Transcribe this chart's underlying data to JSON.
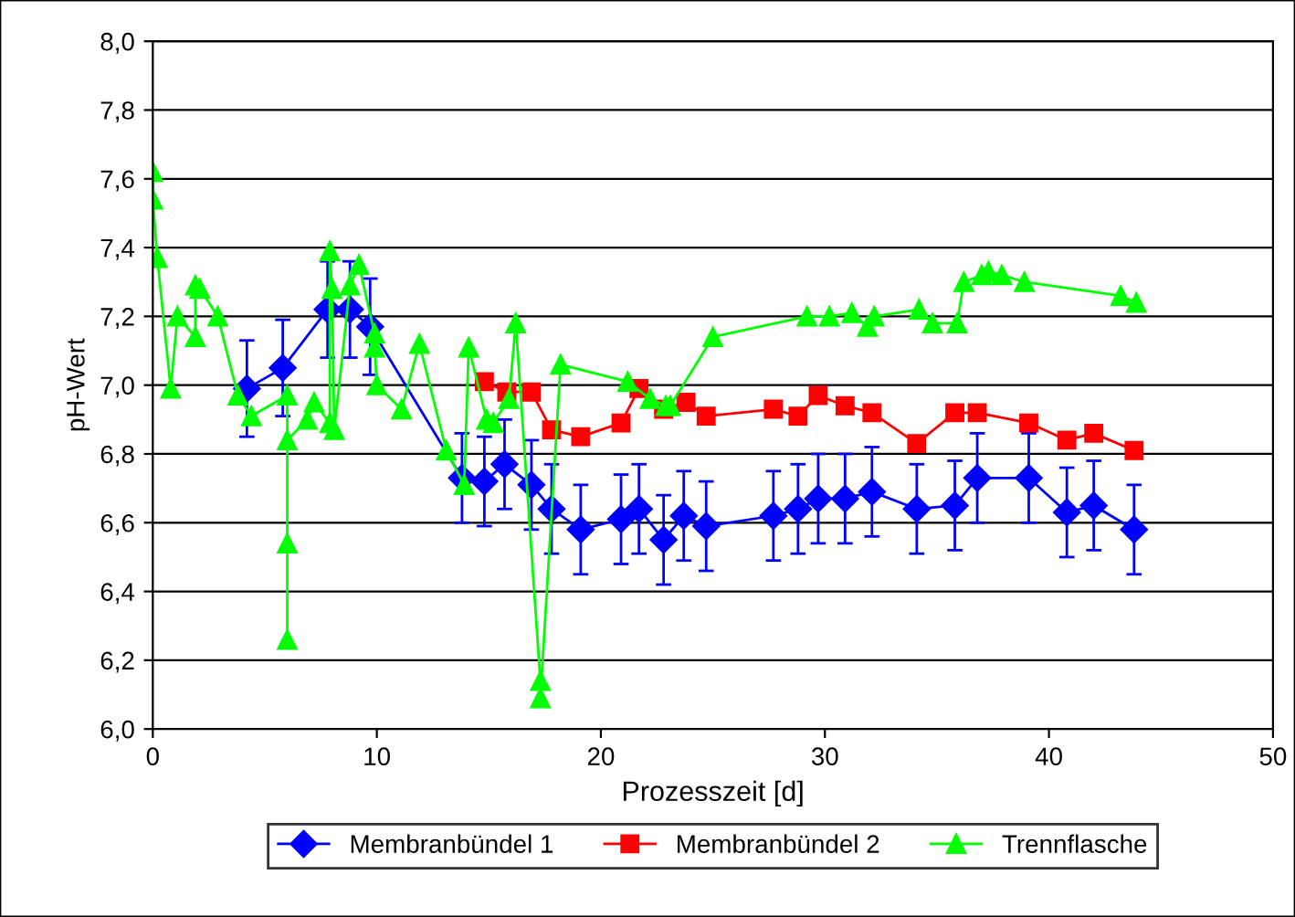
{
  "chart_data": {
    "type": "line",
    "xlabel": "Prozesszeit [d]",
    "ylabel": "pH-Wert",
    "xlim": [
      0,
      50
    ],
    "xticks": [
      0,
      10,
      20,
      30,
      40,
      50
    ],
    "ylim": [
      6.0,
      8.0
    ],
    "yticks": [
      {
        "value": 6.0,
        "label": "6,0"
      },
      {
        "value": 6.2,
        "label": "6,2"
      },
      {
        "value": 6.4,
        "label": "6,4"
      },
      {
        "value": 6.6,
        "label": "6,6"
      },
      {
        "value": 6.8,
        "label": "6,8"
      },
      {
        "value": 7.0,
        "label": "7,0"
      },
      {
        "value": 7.2,
        "label": "7,2"
      },
      {
        "value": 7.4,
        "label": "7,4"
      },
      {
        "value": 7.6,
        "label": "7,6"
      },
      {
        "value": 7.8,
        "label": "7,8"
      },
      {
        "value": 8.0,
        "label": "8,0"
      }
    ],
    "grid": "y",
    "legend": "bottom",
    "series": [
      {
        "name": "Membranbündel 1",
        "color": "#0000ff",
        "marker": "diamond",
        "x": [
          4.2,
          5.8,
          7.8,
          8.8,
          9.7,
          13.8,
          14.8,
          15.7,
          16.9,
          17.8,
          19.1,
          20.9,
          21.7,
          22.8,
          23.7,
          24.7,
          27.7,
          28.8,
          29.7,
          30.9,
          32.1,
          34.1,
          35.8,
          36.8,
          39.1,
          40.8,
          42.0,
          43.8
        ],
        "values": [
          6.99,
          7.05,
          7.22,
          7.22,
          7.17,
          6.73,
          6.72,
          6.77,
          6.71,
          6.64,
          6.58,
          6.61,
          6.64,
          6.55,
          6.62,
          6.59,
          6.62,
          6.64,
          6.67,
          6.67,
          6.69,
          6.64,
          6.65,
          6.73,
          6.73,
          6.63,
          6.65,
          6.58
        ],
        "errors": [
          0.14,
          0.14,
          0.14,
          0.14,
          0.14,
          0.13,
          0.13,
          0.13,
          0.13,
          0.13,
          0.13,
          0.13,
          0.13,
          0.13,
          0.13,
          0.13,
          0.13,
          0.13,
          0.13,
          0.13,
          0.13,
          0.13,
          0.13,
          0.13,
          0.13,
          0.13,
          0.13,
          0.13
        ]
      },
      {
        "name": "Membranbündel 2",
        "color": "#ff0000",
        "marker": "square",
        "x": [
          14.8,
          15.8,
          16.9,
          17.8,
          19.1,
          20.9,
          21.7,
          22.8,
          23.8,
          24.7,
          27.7,
          28.8,
          29.7,
          30.9,
          32.1,
          34.1,
          35.8,
          36.8,
          39.1,
          40.8,
          42.0,
          43.8
        ],
        "values": [
          7.01,
          6.98,
          6.98,
          6.87,
          6.85,
          6.89,
          6.99,
          6.93,
          6.95,
          6.91,
          6.93,
          6.91,
          6.97,
          6.94,
          6.92,
          6.83,
          6.92,
          6.92,
          6.89,
          6.84,
          6.86,
          6.81
        ]
      },
      {
        "name": "Trennflasche",
        "color": "#00ff00",
        "marker": "triangle",
        "x": [
          0,
          0,
          0.2,
          0.8,
          1.1,
          1.9,
          1.9,
          2.1,
          2.9,
          3.8,
          4.4,
          6.0,
          6.0,
          6.0,
          6.0,
          6.9,
          7.2,
          7.9,
          7.9,
          8.0,
          8.1,
          8.8,
          9.2,
          9.9,
          9.9,
          10.0,
          11.1,
          11.9,
          13.1,
          13.9,
          14.1,
          14.9,
          15.2,
          15.9,
          16.2,
          17.3,
          17.3,
          18.2,
          21.2,
          22.2,
          22.9,
          23.1,
          25.0,
          29.2,
          30.2,
          31.2,
          31.9,
          32.2,
          34.2,
          34.8,
          35.9,
          36.2,
          37.0,
          37.3,
          37.9,
          38.9,
          43.2,
          43.9
        ],
        "values": [
          7.62,
          7.54,
          7.37,
          6.99,
          7.2,
          7.14,
          7.29,
          7.28,
          7.2,
          6.97,
          6.91,
          6.97,
          6.26,
          6.54,
          6.84,
          6.9,
          6.95,
          6.89,
          7.39,
          7.28,
          6.87,
          7.29,
          7.35,
          7.15,
          7.11,
          7.0,
          6.93,
          7.12,
          6.81,
          6.71,
          7.11,
          6.9,
          6.89,
          6.96,
          7.18,
          6.14,
          6.09,
          7.06,
          7.01,
          6.96,
          6.94,
          6.94,
          7.14,
          7.2,
          7.2,
          7.21,
          7.17,
          7.2,
          7.22,
          7.18,
          7.18,
          7.3,
          7.32,
          7.33,
          7.32,
          7.3,
          7.26,
          7.24
        ]
      }
    ]
  }
}
